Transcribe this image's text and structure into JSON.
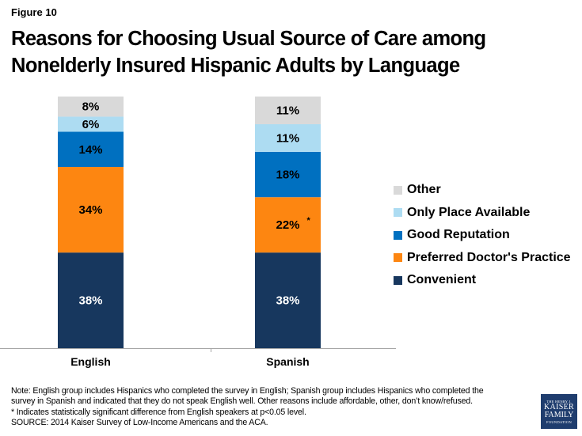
{
  "figure_label": "Figure 10",
  "title_line1": "Reasons for Choosing Usual Source of Care among",
  "title_line2": "Nonelderly Insured Hispanic Adults by Language",
  "chart_data": {
    "type": "bar",
    "stacked": true,
    "title": "Reasons for Choosing Usual Source of Care among Nonelderly Insured Hispanic Adults by Language",
    "xlabel": "",
    "ylabel": "",
    "ylim": [
      0,
      100
    ],
    "grid": false,
    "legend_position": "right",
    "categories": [
      "English",
      "Spanish"
    ],
    "series": [
      {
        "name": "Convenient",
        "color": "#17375e",
        "label_color": "#ffffff",
        "values": [
          38,
          38
        ],
        "labels": [
          "38%",
          "38%"
        ],
        "significant": [
          false,
          false
        ]
      },
      {
        "name": "Preferred Doctor's Practice",
        "color": "#fd8611",
        "label_color": "#000000",
        "values": [
          34,
          22
        ],
        "labels": [
          "34%",
          "22%"
        ],
        "significant": [
          false,
          true
        ]
      },
      {
        "name": "Good Reputation",
        "color": "#0070c0",
        "label_color": "#000000",
        "values": [
          14,
          18
        ],
        "labels": [
          "14%",
          "18%"
        ],
        "significant": [
          false,
          false
        ]
      },
      {
        "name": "Only Place Available",
        "color": "#addcf2",
        "label_color": "#000000",
        "values": [
          6,
          11
        ],
        "labels": [
          "6%",
          "11%"
        ],
        "significant": [
          false,
          false
        ]
      },
      {
        "name": "Other",
        "color": "#d9d9d9",
        "label_color": "#000000",
        "values": [
          8,
          11
        ],
        "labels": [
          "8%",
          "11%"
        ],
        "significant": [
          false,
          false
        ]
      }
    ],
    "significance_marker": "*"
  },
  "legend": [
    {
      "label": "Other",
      "color": "#d9d9d9"
    },
    {
      "label": "Only Place Available",
      "color": "#addcf2"
    },
    {
      "label": "Good Reputation",
      "color": "#0070c0"
    },
    {
      "label": "Preferred Doctor's Practice",
      "color": "#fd8611"
    },
    {
      "label": "Convenient",
      "color": "#17375e"
    }
  ],
  "notes": [
    "Note: English group includes Hispanics who completed the survey in English; Spanish group includes Hispanics who completed the",
    "survey in Spanish and indicated that they do not speak English well. Other reasons include affordable, other, don’t know/refused.",
    "* Indicates statistically significant difference from English speakers at p<0.05 level.",
    "SOURCE: 2014 Kaiser Survey of Low-Income Americans and the ACA."
  ],
  "logo": {
    "line1": "THE HENRY J.",
    "line2": "KAISER",
    "line3": "FAMILY",
    "line4": "FOUNDATION"
  }
}
